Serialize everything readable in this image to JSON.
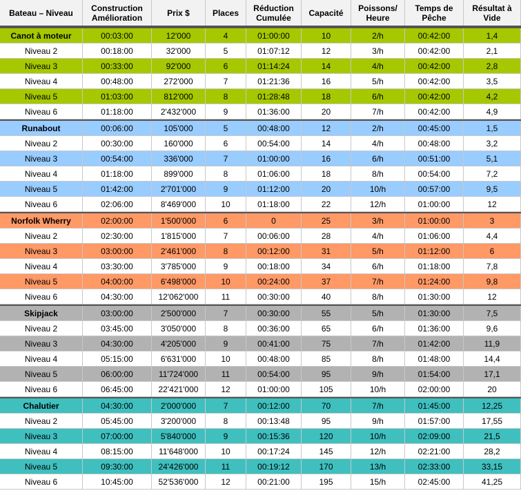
{
  "table": {
    "header": [
      "Bateau – Niveau",
      "Construction\nAmélioration",
      "Prix $",
      "Places",
      "Réduction\nCumulée",
      "Capacité",
      "Poissons/\nHeure",
      "Temps de\nPêche",
      "Résultat à\nVide"
    ],
    "groups": [
      {
        "color": "#a5c800",
        "rows": [
          [
            "Canot à moteur",
            "00:03:00",
            "12'000",
            "4",
            "01:00:00",
            "10",
            "2/h",
            "00:42:00",
            "1,4"
          ],
          [
            "Niveau 2",
            "00:18:00",
            "32'000",
            "5",
            "01:07:12",
            "12",
            "3/h",
            "00:42:00",
            "2,1"
          ],
          [
            "Niveau 3",
            "00:33:00",
            "92'000",
            "6",
            "01:14:24",
            "14",
            "4/h",
            "00:42:00",
            "2,8"
          ],
          [
            "Niveau 4",
            "00:48:00",
            "272'000",
            "7",
            "01:21:36",
            "16",
            "5/h",
            "00:42:00",
            "3,5"
          ],
          [
            "Niveau 5",
            "01:03:00",
            "812'000",
            "8",
            "01:28:48",
            "18",
            "6/h",
            "00:42:00",
            "4,2"
          ],
          [
            "Niveau 6",
            "01:18:00",
            "2'432'000",
            "9",
            "01:36:00",
            "20",
            "7/h",
            "00:42:00",
            "4,9"
          ]
        ]
      },
      {
        "color": "#99ccff",
        "rows": [
          [
            "Runabout",
            "00:06:00",
            "105'000",
            "5",
            "00:48:00",
            "12",
            "2/h",
            "00:45:00",
            "1,5"
          ],
          [
            "Niveau 2",
            "00:30:00",
            "160'000",
            "6",
            "00:54:00",
            "14",
            "4/h",
            "00:48:00",
            "3,2"
          ],
          [
            "Niveau 3",
            "00:54:00",
            "336'000",
            "7",
            "01:00:00",
            "16",
            "6/h",
            "00:51:00",
            "5,1"
          ],
          [
            "Niveau 4",
            "01:18:00",
            "899'000",
            "8",
            "01:06:00",
            "18",
            "8/h",
            "00:54:00",
            "7,2"
          ],
          [
            "Niveau 5",
            "01:42:00",
            "2'701'000",
            "9",
            "01:12:00",
            "20",
            "10/h",
            "00:57:00",
            "9,5"
          ],
          [
            "Niveau 6",
            "02:06:00",
            "8'469'000",
            "10",
            "01:18:00",
            "22",
            "12/h",
            "01:00:00",
            "12"
          ]
        ]
      },
      {
        "color": "#ff9966",
        "rows": [
          [
            "Norfolk Wherry",
            "02:00:00",
            "1'500'000",
            "6",
            "0",
            "25",
            "3/h",
            "01:00:00",
            "3"
          ],
          [
            "Niveau 2",
            "02:30:00",
            "1'815'000",
            "7",
            "00:06:00",
            "28",
            "4/h",
            "01:06:00",
            "4,4"
          ],
          [
            "Niveau 3",
            "03:00:00",
            "2'461'000",
            "8",
            "00:12:00",
            "31",
            "5/h",
            "01:12:00",
            "6"
          ],
          [
            "Niveau 4",
            "03:30:00",
            "3'785'000",
            "9",
            "00:18:00",
            "34",
            "6/h",
            "01:18:00",
            "7,8"
          ],
          [
            "Niveau 5",
            "04:00:00",
            "6'498'000",
            "10",
            "00:24:00",
            "37",
            "7/h",
            "01:24:00",
            "9,8"
          ],
          [
            "Niveau 6",
            "04:30:00",
            "12'062'000",
            "11",
            "00:30:00",
            "40",
            "8/h",
            "01:30:00",
            "12"
          ]
        ]
      },
      {
        "color": "#b2b2b2",
        "rows": [
          [
            "Skipjack",
            "03:00:00",
            "2'500'000",
            "7",
            "00:30:00",
            "55",
            "5/h",
            "01:30:00",
            "7,5"
          ],
          [
            "Niveau 2",
            "03:45:00",
            "3'050'000",
            "8",
            "00:36:00",
            "65",
            "6/h",
            "01:36:00",
            "9,6"
          ],
          [
            "Niveau 3",
            "04:30:00",
            "4'205'000",
            "9",
            "00:41:00",
            "75",
            "7/h",
            "01:42:00",
            "11,9"
          ],
          [
            "Niveau 4",
            "05:15:00",
            "6'631'000",
            "10",
            "00:48:00",
            "85",
            "8/h",
            "01:48:00",
            "14,4"
          ],
          [
            "Niveau 5",
            "06:00:00",
            "11'724'000",
            "11",
            "00:54:00",
            "95",
            "9/h",
            "01:54:00",
            "17,1"
          ],
          [
            "Niveau 6",
            "06:45:00",
            "22'421'000",
            "12",
            "01:00:00",
            "105",
            "10/h",
            "02:00:00",
            "20"
          ]
        ]
      },
      {
        "color": "#40bfbf",
        "rows": [
          [
            "Chalutier",
            "04:30:00",
            "2'000'000",
            "7",
            "00:12:00",
            "70",
            "7/h",
            "01:45:00",
            "12,25"
          ],
          [
            "Niveau 2",
            "05:45:00",
            "3'200'000",
            "8",
            "00:13:48",
            "95",
            "9/h",
            "01:57:00",
            "17,55"
          ],
          [
            "Niveau 3",
            "07:00:00",
            "5'840'000",
            "9",
            "00:15:36",
            "120",
            "10/h",
            "02:09:00",
            "21,5"
          ],
          [
            "Niveau 4",
            "08:15:00",
            "11'648'000",
            "10",
            "00:17:24",
            "145",
            "12/h",
            "02:21:00",
            "28,2"
          ],
          [
            "Niveau 5",
            "09:30:00",
            "24'426'000",
            "11",
            "00:19:12",
            "170",
            "13/h",
            "02:33:00",
            "33,15"
          ],
          [
            "Niveau 6",
            "10:45:00",
            "52'536'000",
            "12",
            "00:21:00",
            "195",
            "15/h",
            "02:45:00",
            "41,25"
          ]
        ]
      }
    ]
  }
}
